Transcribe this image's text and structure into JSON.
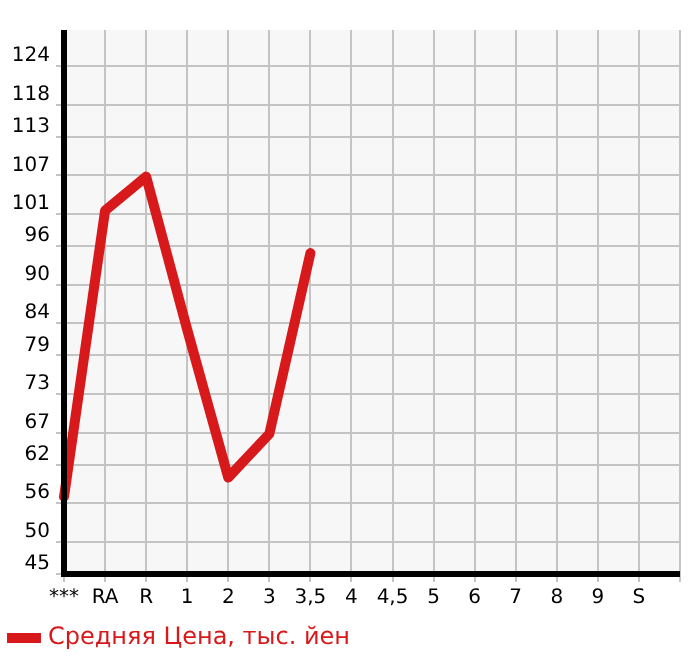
{
  "chart_data": {
    "type": "line",
    "categories": [
      "***",
      "RA",
      "R",
      "1",
      "2",
      "3",
      "3,5",
      "4",
      "4,5",
      "5",
      "6",
      "7",
      "8",
      "9",
      "S",
      null
    ],
    "series": [
      {
        "name": "Средняя Цена, тыс. йен",
        "color": "#d7191c",
        "values": [
          57,
          101.5,
          106.8,
          83,
          60,
          66.8,
          94.9,
          null,
          null,
          null,
          null,
          null,
          null,
          null,
          null,
          null
        ]
      }
    ],
    "ylim": [
      45,
      129.6
    ],
    "yticks": [
      45,
      50,
      56,
      62,
      67,
      73,
      79,
      84,
      90,
      96,
      101,
      107,
      113,
      118,
      124
    ],
    "grid": true,
    "legend": "bottom",
    "marker": "none",
    "line_style": "solid"
  }
}
